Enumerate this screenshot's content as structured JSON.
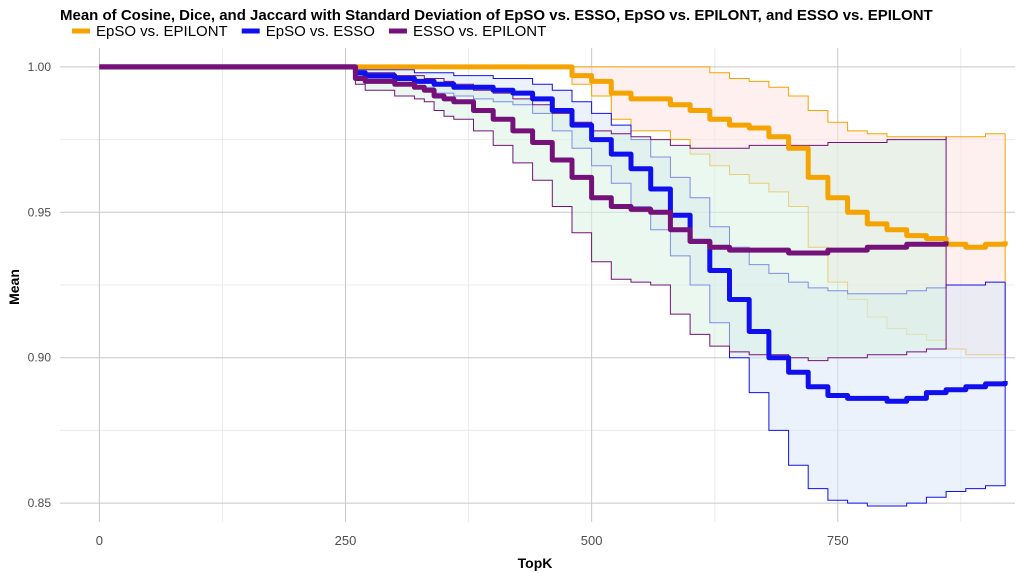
{
  "chart_data": {
    "type": "line",
    "title": "Mean of Cosine, Dice, and Jaccard with Standard Deviation of EpSO vs. ESSO, EpSO vs. EPILONT, and ESSO vs. EPILONT",
    "xlabel": "TopK",
    "ylabel": "Mean",
    "xlim": [
      -40,
      930
    ],
    "ylim": [
      0.8435,
      1.0065
    ],
    "x_ticks": [
      0,
      250,
      500,
      750
    ],
    "y_ticks": [
      0.85,
      0.9,
      0.95,
      1.0
    ],
    "y_tick_labels": [
      "0.85",
      "0.90",
      "0.95",
      "1.00"
    ],
    "grid": true,
    "legend_position": "top-left",
    "series": [
      {
        "name": "EpSO vs. EPILONT",
        "color": "#f5a300",
        "fill": "#fde3e0",
        "x": [
          0,
          250,
          260,
          300,
          350,
          400,
          430,
          460,
          480,
          500,
          520,
          540,
          560,
          580,
          600,
          620,
          640,
          660,
          680,
          700,
          720,
          740,
          760,
          780,
          800,
          820,
          840,
          860,
          880,
          900,
          920
        ],
        "mean": [
          1.0,
          1.0,
          1.0,
          1.0,
          1.0,
          1.0,
          1.0,
          1.0,
          0.997,
          0.995,
          0.991,
          0.989,
          0.989,
          0.987,
          0.985,
          0.982,
          0.98,
          0.979,
          0.976,
          0.972,
          0.962,
          0.955,
          0.95,
          0.946,
          0.944,
          0.942,
          0.941,
          0.939,
          0.938,
          0.939,
          0.94
        ],
        "upper": [
          1.0,
          1.0,
          1.0,
          1.0,
          1.0,
          1.0,
          1.0,
          1.0,
          1.0,
          1.0,
          1.0,
          1.0,
          1.0,
          1.0,
          1.0,
          0.998,
          0.996,
          0.995,
          0.993,
          0.99,
          0.985,
          0.981,
          0.978,
          0.977,
          0.976,
          0.976,
          0.976,
          0.976,
          0.976,
          0.977,
          0.977
        ],
        "lower": [
          1.0,
          1.0,
          1.0,
          1.0,
          1.0,
          1.0,
          1.0,
          1.0,
          0.994,
          0.99,
          0.982,
          0.978,
          0.978,
          0.975,
          0.97,
          0.966,
          0.963,
          0.96,
          0.957,
          0.952,
          0.938,
          0.926,
          0.92,
          0.914,
          0.91,
          0.908,
          0.906,
          0.903,
          0.901,
          0.901,
          0.901
        ]
      },
      {
        "name": "EpSO vs. ESSO",
        "color": "#1010ee",
        "fill": "#dbe8f8",
        "x": [
          0,
          250,
          260,
          270,
          300,
          320,
          340,
          360,
          380,
          400,
          420,
          440,
          460,
          480,
          500,
          520,
          540,
          560,
          580,
          600,
          620,
          640,
          660,
          680,
          700,
          720,
          740,
          760,
          780,
          800,
          820,
          840,
          860,
          880,
          900,
          920
        ],
        "mean": [
          1.0,
          1.0,
          0.998,
          0.997,
          0.996,
          0.995,
          0.994,
          0.993,
          0.993,
          0.992,
          0.991,
          0.989,
          0.985,
          0.98,
          0.975,
          0.97,
          0.965,
          0.958,
          0.949,
          0.94,
          0.93,
          0.92,
          0.909,
          0.9,
          0.895,
          0.89,
          0.887,
          0.886,
          0.886,
          0.885,
          0.886,
          0.888,
          0.889,
          0.89,
          0.891,
          0.892
        ],
        "upper": [
          1.0,
          1.0,
          0.999,
          0.999,
          0.999,
          0.998,
          0.998,
          0.997,
          0.997,
          0.996,
          0.996,
          0.994,
          0.992,
          0.988,
          0.984,
          0.98,
          0.975,
          0.969,
          0.962,
          0.955,
          0.945,
          0.938,
          0.932,
          0.929,
          0.926,
          0.924,
          0.923,
          0.922,
          0.922,
          0.922,
          0.923,
          0.924,
          0.925,
          0.925,
          0.926,
          0.926
        ],
        "lower": [
          1.0,
          1.0,
          0.997,
          0.996,
          0.994,
          0.993,
          0.991,
          0.99,
          0.989,
          0.988,
          0.987,
          0.984,
          0.978,
          0.972,
          0.966,
          0.96,
          0.952,
          0.944,
          0.935,
          0.925,
          0.912,
          0.9,
          0.888,
          0.875,
          0.863,
          0.855,
          0.851,
          0.85,
          0.849,
          0.849,
          0.85,
          0.852,
          0.854,
          0.855,
          0.856,
          0.857
        ]
      },
      {
        "name": "ESSO vs. EPILONT",
        "color": "#74127a",
        "fill": "#d8f2e4",
        "x": [
          0,
          250,
          260,
          270,
          300,
          320,
          330,
          340,
          350,
          360,
          380,
          400,
          420,
          440,
          460,
          480,
          500,
          520,
          540,
          560,
          580,
          600,
          620,
          640,
          660,
          680,
          700,
          720,
          740,
          760,
          780,
          800,
          820,
          840,
          860
        ],
        "mean": [
          1.0,
          1.0,
          0.996,
          0.995,
          0.994,
          0.993,
          0.992,
          0.99,
          0.989,
          0.988,
          0.985,
          0.982,
          0.978,
          0.974,
          0.968,
          0.962,
          0.955,
          0.952,
          0.951,
          0.95,
          0.944,
          0.94,
          0.938,
          0.937,
          0.937,
          0.937,
          0.936,
          0.936,
          0.937,
          0.937,
          0.938,
          0.938,
          0.939,
          0.939,
          0.94
        ],
        "upper": [
          1.0,
          1.0,
          0.998,
          0.998,
          0.997,
          0.997,
          0.996,
          0.996,
          0.995,
          0.994,
          0.992,
          0.991,
          0.989,
          0.987,
          0.984,
          0.981,
          0.978,
          0.977,
          0.976,
          0.975,
          0.973,
          0.972,
          0.972,
          0.972,
          0.973,
          0.973,
          0.973,
          0.973,
          0.974,
          0.974,
          0.974,
          0.975,
          0.975,
          0.975,
          0.976
        ],
        "lower": [
          1.0,
          1.0,
          0.994,
          0.992,
          0.99,
          0.989,
          0.988,
          0.985,
          0.983,
          0.982,
          0.978,
          0.973,
          0.967,
          0.961,
          0.952,
          0.943,
          0.933,
          0.927,
          0.926,
          0.925,
          0.915,
          0.908,
          0.904,
          0.902,
          0.901,
          0.901,
          0.9,
          0.899,
          0.9,
          0.9,
          0.901,
          0.901,
          0.902,
          0.903,
          0.904
        ]
      }
    ]
  }
}
